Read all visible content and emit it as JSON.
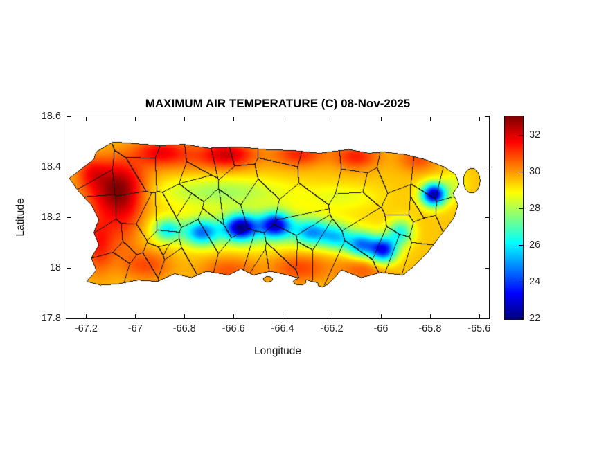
{
  "figure": {
    "title": "MAXIMUM AIR TEMPERATURE (C) 08-Nov-2025",
    "xlabel": "Longitude",
    "ylabel": "Latitude"
  },
  "chart_data": {
    "type": "heatmap",
    "title": "MAXIMUM AIR TEMPERATURE (C) 08-Nov-2025",
    "xlabel": "Longitude",
    "ylabel": "Latitude",
    "region": "Puerto Rico",
    "units": "degrees C",
    "xlim": [
      -67.28,
      -65.56
    ],
    "ylim": [
      17.8,
      18.6
    ],
    "grid": false,
    "xticks": {
      "values": [
        -67.2,
        -67.0,
        -66.8,
        -66.6,
        -66.4,
        -66.2,
        -66.0,
        -65.8,
        -65.6
      ],
      "labels": [
        "-67.2",
        "-67",
        "-66.8",
        "-66.6",
        "-66.4",
        "-66.2",
        "-66",
        "-65.8",
        "-65.6"
      ]
    },
    "yticks": {
      "values": [
        17.8,
        18.0,
        18.2,
        18.4,
        18.6
      ],
      "labels": [
        "17.8",
        "18",
        "18.2",
        "18.4",
        "18.6"
      ]
    },
    "colorbar": {
      "min": 22,
      "max": 33,
      "colormap": "jet",
      "position": "right",
      "tick_values": [
        22,
        24,
        26,
        28,
        30,
        32
      ],
      "ticks": [
        "22",
        "24",
        "26",
        "28",
        "30",
        "32"
      ]
    },
    "field": {
      "base": 29.5,
      "blobs": [
        [
          -67.08,
          18.32,
          2.9,
          0.12,
          0.1
        ],
        [
          -67.18,
          18.38,
          1.2,
          0.06,
          0.06
        ],
        [
          -67.15,
          18.1,
          1.8,
          0.06,
          0.12
        ],
        [
          -67.05,
          18.2,
          1.5,
          0.08,
          0.15
        ],
        [
          -66.9,
          18.46,
          1.6,
          0.1,
          0.05
        ],
        [
          -66.62,
          18.45,
          1.9,
          0.1,
          0.05
        ],
        [
          -66.33,
          18.45,
          1.7,
          0.1,
          0.05
        ],
        [
          -66.1,
          18.44,
          1.8,
          0.09,
          0.05
        ],
        [
          -65.85,
          18.43,
          1.3,
          0.08,
          0.05
        ],
        [
          -66.75,
          18.44,
          1.0,
          0.25,
          0.06
        ],
        [
          -66.95,
          18.01,
          1.3,
          0.1,
          0.06
        ],
        [
          -66.62,
          17.99,
          1.2,
          0.12,
          0.06
        ],
        [
          -66.33,
          18.0,
          1.4,
          0.12,
          0.06
        ],
        [
          -66.07,
          18.0,
          1.2,
          0.1,
          0.06
        ],
        [
          -66.87,
          18.15,
          -3.0,
          0.055,
          0.045
        ],
        [
          -66.73,
          18.14,
          -4.0,
          0.07,
          0.05
        ],
        [
          -66.57,
          18.16,
          -6.0,
          0.065,
          0.05
        ],
        [
          -66.43,
          18.17,
          -5.5,
          0.065,
          0.05
        ],
        [
          -66.28,
          18.14,
          -3.5,
          0.07,
          0.05
        ],
        [
          -66.18,
          18.12,
          -3.0,
          0.06,
          0.05
        ],
        [
          -66.08,
          18.09,
          -4.5,
          0.06,
          0.05
        ],
        [
          -65.99,
          18.07,
          -6.0,
          0.055,
          0.05
        ],
        [
          -65.92,
          18.14,
          -3.0,
          0.05,
          0.05
        ],
        [
          -65.785,
          18.29,
          -7.0,
          0.05,
          0.045
        ],
        [
          -66.5,
          18.15,
          -1.5,
          0.35,
          0.08
        ],
        [
          -66.65,
          18.3,
          -1.6,
          0.28,
          0.06
        ],
        [
          -66.15,
          18.28,
          -0.8,
          0.15,
          0.05
        ],
        [
          -65.7,
          18.33,
          -0.9,
          0.05,
          0.06
        ]
      ]
    },
    "island_outline": [
      [
        -67.16,
        18.46
      ],
      [
        -67.09,
        18.5
      ],
      [
        -66.96,
        18.49
      ],
      [
        -66.9,
        18.485
      ],
      [
        -66.8,
        18.49
      ],
      [
        -66.7,
        18.475
      ],
      [
        -66.58,
        18.48
      ],
      [
        -66.47,
        18.47
      ],
      [
        -66.35,
        18.465
      ],
      [
        -66.25,
        18.455
      ],
      [
        -66.13,
        18.47
      ],
      [
        -66.05,
        18.455
      ],
      [
        -65.99,
        18.46
      ],
      [
        -65.9,
        18.45
      ],
      [
        -65.82,
        18.43
      ],
      [
        -65.74,
        18.4
      ],
      [
        -65.695,
        18.37
      ],
      [
        -65.68,
        18.33
      ],
      [
        -65.705,
        18.295
      ],
      [
        -65.685,
        18.25
      ],
      [
        -65.7,
        18.2
      ],
      [
        -65.73,
        18.16
      ],
      [
        -65.77,
        18.11
      ],
      [
        -65.81,
        18.06
      ],
      [
        -65.86,
        18.01
      ],
      [
        -65.91,
        17.97
      ],
      [
        -66.0,
        17.98
      ],
      [
        -66.08,
        17.96
      ],
      [
        -66.16,
        17.99
      ],
      [
        -66.22,
        17.93
      ],
      [
        -66.3,
        17.95
      ],
      [
        -66.38,
        17.97
      ],
      [
        -66.45,
        17.985
      ],
      [
        -66.52,
        17.97
      ],
      [
        -66.57,
        17.995
      ],
      [
        -66.62,
        17.97
      ],
      [
        -66.71,
        17.985
      ],
      [
        -66.77,
        17.96
      ],
      [
        -66.84,
        17.975
      ],
      [
        -66.91,
        17.945
      ],
      [
        -66.99,
        17.95
      ],
      [
        -67.07,
        17.935
      ],
      [
        -67.14,
        17.93
      ],
      [
        -67.2,
        17.945
      ],
      [
        -67.16,
        17.99
      ],
      [
        -67.18,
        18.04
      ],
      [
        -67.15,
        18.09
      ],
      [
        -67.17,
        18.14
      ],
      [
        -67.15,
        18.19
      ],
      [
        -67.18,
        18.25
      ],
      [
        -67.23,
        18.3
      ],
      [
        -67.27,
        18.355
      ],
      [
        -67.21,
        18.4
      ],
      [
        -67.17,
        18.43
      ]
    ],
    "islets": [
      [
        -65.63,
        18.345,
        0.035,
        0.05
      ],
      [
        -66.46,
        17.955,
        0.02,
        0.012
      ],
      [
        -66.33,
        17.945,
        0.027,
        0.014
      ],
      [
        -66.24,
        17.935,
        0.018,
        0.011
      ]
    ],
    "boundaries": {
      "style": "municipal",
      "seed": 20,
      "count": 64
    }
  }
}
